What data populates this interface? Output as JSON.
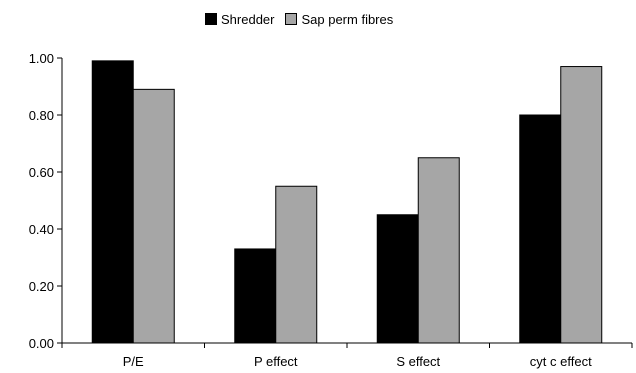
{
  "chart_data": {
    "type": "bar",
    "categories": [
      "P/E",
      "P effect",
      "S effect",
      "cyt c effect"
    ],
    "series": [
      {
        "name": "Shredder",
        "color": "#000000",
        "values": [
          0.99,
          0.33,
          0.45,
          0.8
        ]
      },
      {
        "name": "Sap perm fibres",
        "color": "#a6a6a6",
        "values": [
          0.89,
          0.55,
          0.65,
          0.97
        ]
      }
    ],
    "y_ticks": [
      "0.00",
      "0.20",
      "0.40",
      "0.60",
      "0.80",
      "1.00"
    ],
    "ylim": [
      0,
      1
    ],
    "legend_position": "top",
    "grid": false
  }
}
